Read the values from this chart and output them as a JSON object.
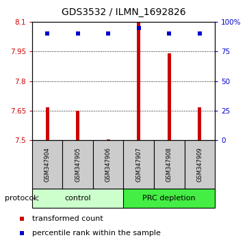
{
  "title": "GDS3532 / ILMN_1692826",
  "samples": [
    "GSM347904",
    "GSM347905",
    "GSM347906",
    "GSM347907",
    "GSM347908",
    "GSM347909"
  ],
  "red_values": [
    7.668,
    7.651,
    7.503,
    8.102,
    7.94,
    7.668
  ],
  "blue_values": [
    90,
    90,
    90,
    95,
    90,
    90
  ],
  "ylim_left": [
    7.5,
    8.1
  ],
  "ylim_right": [
    0,
    100
  ],
  "yticks_left": [
    7.5,
    7.65,
    7.8,
    7.95,
    8.1
  ],
  "ytick_labels_left": [
    "7.5",
    "7.65",
    "7.8",
    "7.95",
    "8.1"
  ],
  "yticks_right": [
    0,
    25,
    50,
    75,
    100
  ],
  "ytick_labels_right": [
    "0",
    "25",
    "50",
    "75",
    "100%"
  ],
  "baseline": 7.5,
  "groups": [
    {
      "label": "control",
      "indices": [
        0,
        1,
        2
      ],
      "color": "#ccffcc"
    },
    {
      "label": "PRC depletion",
      "indices": [
        3,
        4,
        5
      ],
      "color": "#44ee44"
    }
  ],
  "sample_box_color": "#cccccc",
  "bar_color": "#cc0000",
  "dot_color": "#0000cc",
  "bar_width": 0.12,
  "dot_size": 5,
  "legend_items": [
    {
      "color": "#cc0000",
      "label": "transformed count"
    },
    {
      "color": "#0000cc",
      "label": "percentile rank within the sample"
    }
  ],
  "protocol_label": "protocol",
  "title_fontsize": 10,
  "tick_fontsize": 7.5,
  "label_fontsize": 7,
  "sample_fontsize": 6
}
